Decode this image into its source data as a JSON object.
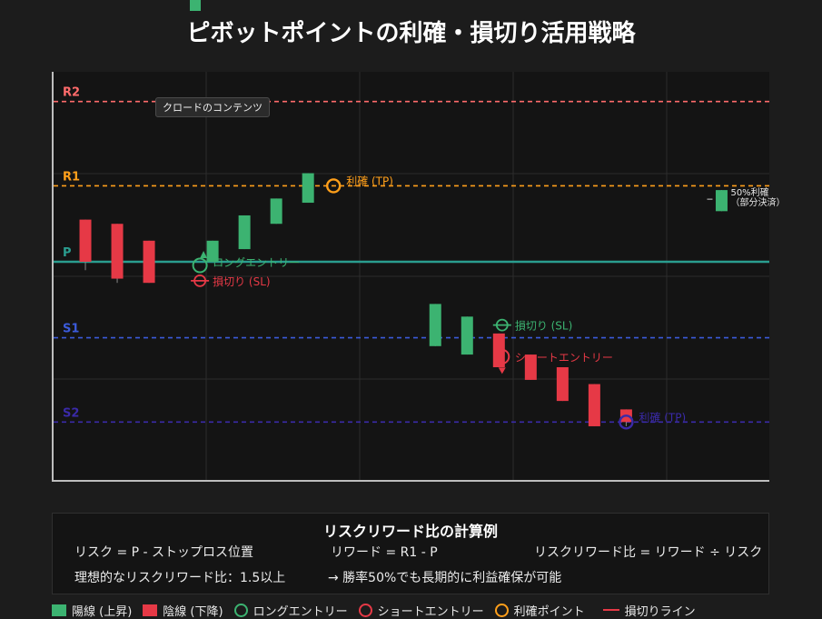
{
  "title": "ピボットポイントの利確・損切り活用戦略",
  "badge": "クロードのコンテンツ",
  "chart_data": {
    "type": "candlestick",
    "y_range": [
      0,
      100
    ],
    "levels": [
      {
        "name": "R2",
        "value": 88,
        "color": "#ff6b6b",
        "style": "dashed"
      },
      {
        "name": "R1",
        "value": 68,
        "color": "#ff9f1a",
        "style": "dashed"
      },
      {
        "name": "P",
        "value": 50,
        "color": "#2a9d8f",
        "style": "solid"
      },
      {
        "name": "S1",
        "value": 32,
        "color": "#3b5bdb",
        "style": "dashed"
      },
      {
        "name": "S2",
        "value": 12,
        "color": "#3a2aa8",
        "style": "dashed"
      }
    ],
    "candles": [
      {
        "x": 1,
        "open": 60,
        "close": 50,
        "high": 60,
        "low": 48,
        "bull": false
      },
      {
        "x": 2,
        "open": 59,
        "close": 46,
        "high": 59,
        "low": 45,
        "bull": false
      },
      {
        "x": 3,
        "open": 55,
        "close": 45,
        "high": 55,
        "low": 45,
        "bull": false
      },
      {
        "x": 5,
        "open": 50,
        "close": 55,
        "high": 55,
        "low": 50,
        "bull": true
      },
      {
        "x": 6,
        "open": 53,
        "close": 61,
        "high": 61,
        "low": 53,
        "bull": true
      },
      {
        "x": 7,
        "open": 59,
        "close": 65,
        "high": 65,
        "low": 59,
        "bull": true
      },
      {
        "x": 8,
        "open": 64,
        "close": 71,
        "high": 71,
        "low": 64,
        "bull": true
      },
      {
        "x": 12,
        "open": 30,
        "close": 40,
        "high": 40,
        "low": 30,
        "bull": true
      },
      {
        "x": 13,
        "open": 28,
        "close": 37,
        "high": 37,
        "low": 28,
        "bull": true
      },
      {
        "x": 14,
        "open": 33,
        "close": 25,
        "high": 33,
        "low": 25,
        "bull": false
      },
      {
        "x": 15,
        "open": 28,
        "close": 22,
        "high": 28,
        "low": 22,
        "bull": false
      },
      {
        "x": 16,
        "open": 25,
        "close": 17,
        "high": 25,
        "low": 17,
        "bull": false
      },
      {
        "x": 17,
        "open": 21,
        "close": 11,
        "high": 21,
        "low": 11,
        "bull": false
      },
      {
        "x": 18,
        "open": 15,
        "close": 12,
        "high": 15,
        "low": 11,
        "bull": false
      },
      {
        "x": 21,
        "open": 62,
        "close": 67,
        "high": 67,
        "low": 62,
        "bull": true
      }
    ],
    "markers": [
      {
        "kind": "long-entry",
        "x": 4.6,
        "y": 50,
        "label": "ロングエントリー",
        "color": "#3cb371"
      },
      {
        "kind": "stop-loss",
        "x": 4.6,
        "y": 45.5,
        "label": "損切り (SL)",
        "color": "#e63946"
      },
      {
        "kind": "take-profit",
        "x": 8.8,
        "y": 68,
        "label": "利確 (TP)",
        "color": "#ff9f1a"
      },
      {
        "kind": "stop-loss",
        "x": 14.1,
        "y": 35,
        "label": "損切り (SL)",
        "color": "#3cb371"
      },
      {
        "kind": "short-entry",
        "x": 14.1,
        "y": 27.5,
        "label": "ショートエントリー",
        "color": "#e63946"
      },
      {
        "kind": "take-profit",
        "x": 18.0,
        "y": 12,
        "label": "利確 (TP)",
        "color": "#3a2aa8"
      }
    ],
    "partial_note": [
      "50%利確",
      "（部分決済）"
    ]
  },
  "calc": {
    "title": "リスクリワード比の計算例",
    "risk": "リスク = P - ストップロス位置",
    "reward": "リワード = R1 - P",
    "ratio": "リスクリワード比 = リワード ÷ リスク",
    "ideal": "理想的なリスクリワード比：1.5以上",
    "note": "→ 勝率50%でも長期的に利益確保が可能"
  },
  "legend": {
    "bull": "陽線 (上昇)",
    "bear": "陰線 (下降)",
    "long": "ロングエントリー",
    "short": "ショートエントリー",
    "tp": "利確ポイント",
    "sl": "損切りライン"
  },
  "colors": {
    "bull": "#3cb371",
    "bear": "#e63946",
    "tp": "#ff9f1a",
    "sl_line": "#e63946"
  }
}
